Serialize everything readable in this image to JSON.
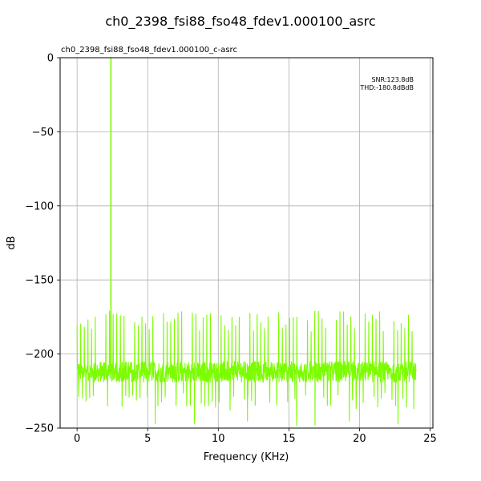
{
  "chart_data": {
    "type": "line",
    "title": "ch0_2398_fsi88_fso48_fdev1.000100_asrc",
    "subtitle": "ch0_2398_fsi88_fso48_fdev1.000100_c-asrc",
    "xlabel": "Frequency (KHz)",
    "ylabel": "dB",
    "xlim": [
      -1.2,
      25.2
    ],
    "ylim": [
      -250,
      0
    ],
    "xticks": [
      0,
      5,
      10,
      15,
      20,
      25
    ],
    "xtick_labels": [
      "0",
      "5",
      "10",
      "15",
      "20",
      "25"
    ],
    "yticks": [
      0,
      -50,
      -100,
      -150,
      -200,
      -250
    ],
    "ytick_labels": [
      "0",
      "−50",
      "−100",
      "−150",
      "−200",
      "−250"
    ],
    "grid": true,
    "legend": "none",
    "annotations": [
      "SNR:123.8dB",
      "THD:-180.8dBdB"
    ],
    "series": [
      {
        "color": "#7cfc00",
        "signal": {
          "frequency_khz": 2.398,
          "level_db": 0
        },
        "noise_floor_db": -212,
        "spur_peak_range_db": [
          -185,
          -171
        ],
        "trough_min_db": -249,
        "x_range_khz": [
          0,
          24
        ]
      }
    ]
  }
}
